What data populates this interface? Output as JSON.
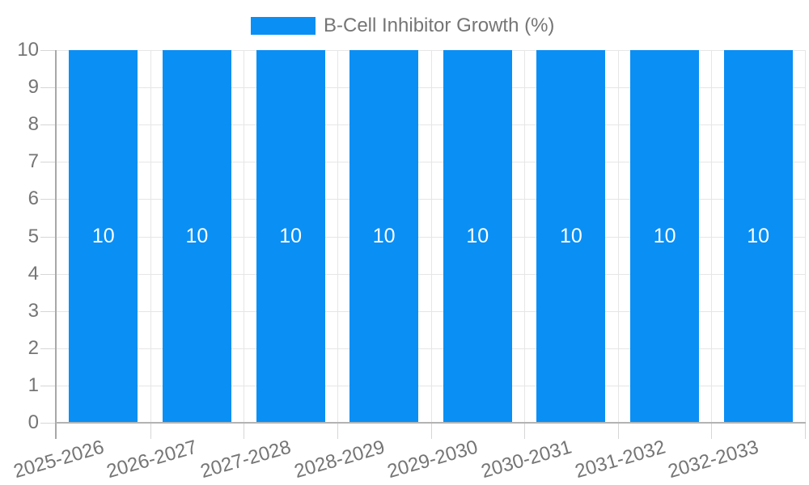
{
  "legend": {
    "label": "B-Cell Inhibitor Growth (%)"
  },
  "colors": {
    "bar": "#0a8ff4",
    "grid": "#e6e6e6",
    "axis_line": "#a8a8a8",
    "baseline": "#b3b3b3",
    "tick_label": "#757575",
    "value_label": "#ffffff",
    "background": "#ffffff"
  },
  "chart_data": {
    "type": "bar",
    "title": "",
    "categories": [
      "2025-2026",
      "2026-2027",
      "2027-2028",
      "2028-2029",
      "2029-2030",
      "2030-2031",
      "2031-2032",
      "2032-2033"
    ],
    "series": [
      {
        "name": "B-Cell Inhibitor Growth (%)",
        "color": "#0a8ff4",
        "values": [
          10,
          10,
          10,
          10,
          10,
          10,
          10,
          10
        ]
      }
    ],
    "bar_value_labels": [
      "10",
      "10",
      "10",
      "10",
      "10",
      "10",
      "10",
      "10"
    ],
    "xlabel": "",
    "ylabel": "",
    "ylim": [
      0,
      10
    ],
    "yticks": [
      0,
      1,
      2,
      3,
      4,
      5,
      6,
      7,
      8,
      9,
      10
    ],
    "grid": true,
    "legend_position": "top",
    "x_label_rotation_deg": -16
  }
}
